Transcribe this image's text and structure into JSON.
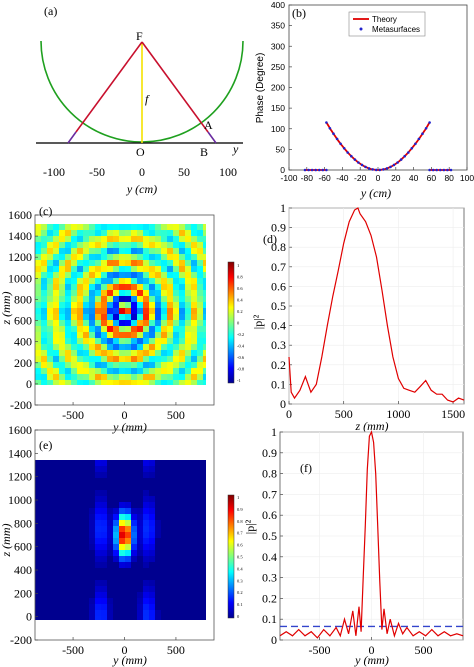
{
  "chart_data": [
    {
      "panel": "(a)",
      "type": "diagram",
      "points": {
        "F": "F",
        "A": "A",
        "B": "B",
        "O": "O"
      },
      "focal_label": "f",
      "axis_name": "y",
      "x_ticks": [
        "-100",
        "-50",
        "0",
        "50",
        "100"
      ],
      "xlabel": "y (cm)",
      "focal_length_cm": 78,
      "aperture_cm": [
        -80,
        80
      ],
      "circle_radius_cm": 100,
      "colors": {
        "arc": "#1fa01f",
        "rays": "#c8102e",
        "focal": "#f5e200",
        "extension": "#6a2ca0"
      }
    },
    {
      "panel": "(b)",
      "type": "line",
      "xlabel": "y (cm)",
      "ylabel": "Phase (Degree)",
      "xlim": [
        -100,
        100
      ],
      "ylim": [
        0,
        400
      ],
      "x_ticks": [
        "-100",
        "-80",
        "-60",
        "-40",
        "-20",
        "0",
        "20",
        "40",
        "60",
        "80",
        "100"
      ],
      "y_ticks": [
        "0",
        "50",
        "100",
        "150",
        "200",
        "250",
        "300",
        "350",
        "400"
      ],
      "legend_position": "top-right",
      "series": [
        {
          "name": "Theory",
          "style": "line",
          "color": "#e00000"
        },
        {
          "name": "Metasurfaces",
          "style": "markers",
          "color": "#2222cc"
        }
      ],
      "focal_length_cm": 78,
      "wrap_points": [
        {
          "y": -82,
          "phase": 350
        },
        {
          "y": -58,
          "phase": 0
        },
        {
          "y": -58,
          "phase": 360
        },
        {
          "y": 0,
          "phase": 0
        },
        {
          "y": 58,
          "phase": 360
        },
        {
          "y": 58,
          "phase": 0
        },
        {
          "y": 82,
          "phase": 350
        }
      ]
    },
    {
      "panel": "(c)",
      "type": "heatmap",
      "xlabel": "y (mm)",
      "ylabel": "z (mm)",
      "xlim": [
        -870,
        870
      ],
      "ylim": [
        -200,
        1600
      ],
      "x_ticks": [
        "-500",
        "0",
        "500"
      ],
      "y_ticks": [
        "-200",
        "0",
        "200",
        "400",
        "600",
        "800",
        "1000",
        "1200",
        "1400",
        "1600"
      ],
      "colorbar_ticks": [
        "1",
        "0.8",
        "0.6",
        "0.4",
        "0.2",
        "0",
        "-0.2",
        "-0.4",
        "-0.6",
        "-0.8",
        "-1"
      ],
      "colorbar_range": [
        -1,
        1
      ],
      "focus_mm": {
        "y": 0,
        "z": 700
      }
    },
    {
      "panel": "(d)",
      "type": "line",
      "xlabel": "z (mm)",
      "ylabel": "|p|²",
      "xlim": [
        0,
        1600
      ],
      "ylim": [
        0,
        1
      ],
      "x_ticks": [
        "0",
        "500",
        "1000",
        "1500"
      ],
      "y_ticks": [
        "0",
        "0.1",
        "0.2",
        "0.3",
        "0.4",
        "0.5",
        "0.6",
        "0.7",
        "0.8",
        "0.9",
        "1"
      ],
      "series": [
        {
          "color": "#e00000",
          "x": [
            0,
            20,
            50,
            100,
            150,
            200,
            250,
            300,
            350,
            400,
            450,
            500,
            550,
            600,
            630,
            650,
            700,
            750,
            800,
            850,
            900,
            950,
            1000,
            1050,
            1100,
            1150,
            1200,
            1250,
            1300,
            1350,
            1400,
            1450,
            1500,
            1550,
            1600
          ],
          "y": [
            0.24,
            0.06,
            0.03,
            0.07,
            0.14,
            0.06,
            0.1,
            0.24,
            0.4,
            0.55,
            0.68,
            0.82,
            0.93,
            0.99,
            1.0,
            0.97,
            0.93,
            0.86,
            0.75,
            0.58,
            0.4,
            0.24,
            0.13,
            0.08,
            0.07,
            0.06,
            0.09,
            0.12,
            0.07,
            0.05,
            0.05,
            0.02,
            0.01,
            0.03,
            0.02
          ]
        }
      ]
    },
    {
      "panel": "(e)",
      "type": "heatmap",
      "xlabel": "y (mm)",
      "ylabel": "z (mm)",
      "xlim": [
        -870,
        870
      ],
      "ylim": [
        -200,
        1600
      ],
      "x_ticks": [
        "-500",
        "0",
        "500"
      ],
      "y_ticks": [
        "-200",
        "0",
        "200",
        "400",
        "600",
        "800",
        "1000",
        "1200",
        "1400",
        "1600"
      ],
      "colorbar_ticks": [
        "1",
        "0.9",
        "0.8",
        "0.7",
        "0.6",
        "0.5",
        "0.4",
        "0.3",
        "0.2",
        "0.1",
        "0"
      ],
      "colorbar_range": [
        0,
        1
      ],
      "focus_mm": {
        "y": 0,
        "z": 700
      }
    },
    {
      "panel": "(f)",
      "type": "line",
      "xlabel": "y (mm)",
      "ylabel": "|p|²",
      "xlim": [
        -880,
        880
      ],
      "ylim": [
        0,
        1
      ],
      "x_ticks": [
        "-500",
        "0",
        "500"
      ],
      "y_ticks": [
        "0",
        "0.1",
        "0.2",
        "0.3",
        "0.4",
        "0.5",
        "0.6",
        "0.7",
        "0.8",
        "0.9",
        "1"
      ],
      "reference_line": 0.065,
      "series": [
        {
          "color": "#e00000",
          "x": [
            -880,
            -820,
            -760,
            -700,
            -640,
            -580,
            -520,
            -460,
            -400,
            -340,
            -300,
            -260,
            -220,
            -180,
            -150,
            -120,
            -100,
            -80,
            -60,
            -40,
            -20,
            0,
            20,
            40,
            60,
            80,
            100,
            120,
            150,
            180,
            220,
            260,
            300,
            340,
            400,
            460,
            520,
            580,
            640,
            700,
            760,
            820,
            880
          ],
          "y": [
            0.02,
            0.04,
            0.02,
            0.05,
            0.02,
            0.04,
            0.01,
            0.05,
            0.02,
            0.06,
            0.02,
            0.1,
            0.03,
            0.14,
            0.02,
            0.16,
            0.04,
            0.3,
            0.55,
            0.82,
            0.98,
            1.0,
            0.95,
            0.8,
            0.55,
            0.28,
            0.05,
            0.15,
            0.03,
            0.1,
            0.02,
            0.08,
            0.03,
            0.06,
            0.02,
            0.04,
            0.02,
            0.05,
            0.02,
            0.04,
            0.02,
            0.03,
            0.02
          ]
        }
      ]
    }
  ]
}
